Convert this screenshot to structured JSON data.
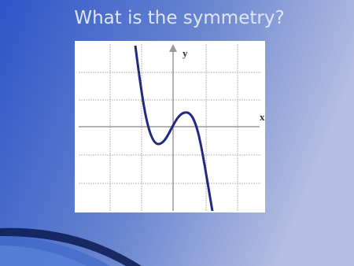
{
  "slide": {
    "title": "What is the symmetry?",
    "graph": {
      "y_label": "y",
      "x_label": "x"
    }
  }
}
